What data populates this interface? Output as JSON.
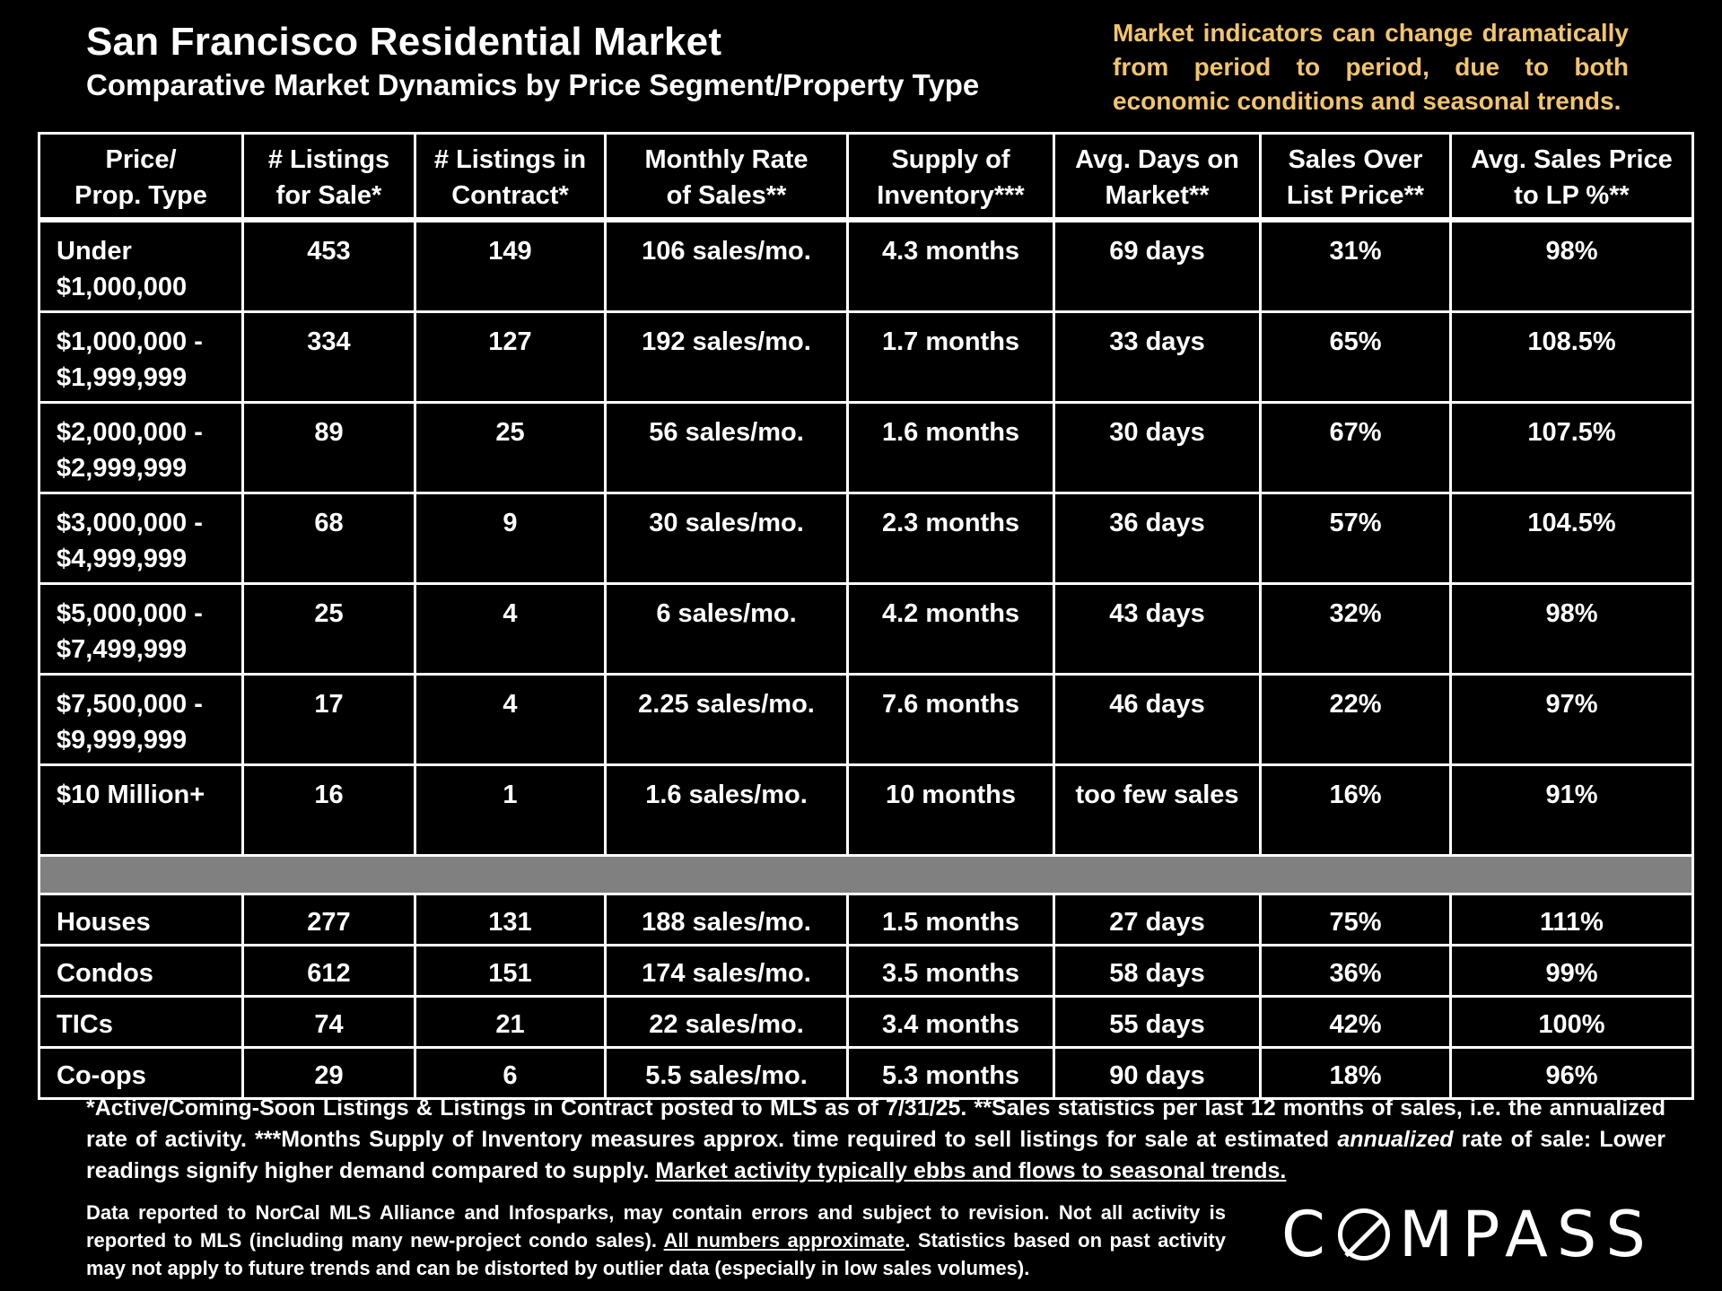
{
  "header": {
    "title": "San Francisco Residential Market",
    "subtitle": "Comparative Market Dynamics by Price Segment/Property Type",
    "note": "Market indicators can change dramatically from period to period, due to both economic conditions and seasonal trends."
  },
  "table": {
    "columns": [
      [
        "Price/",
        "Prop. Type"
      ],
      [
        "# Listings",
        "for Sale*"
      ],
      [
        "# Listings in",
        "Contract*"
      ],
      [
        "Monthly Rate",
        "of Sales**"
      ],
      [
        "Supply of",
        "Inventory***"
      ],
      [
        "Avg. Days on",
        "Market**"
      ],
      [
        "Sales Over",
        "List Price**"
      ],
      [
        "Avg. Sales Price",
        "to LP %**"
      ]
    ],
    "price_rows": [
      {
        "label": [
          "Under",
          "$1,000,000"
        ],
        "listings": "453",
        "contract": "149",
        "rate": "106 sales/mo.",
        "supply": "4.3 months",
        "dom": "69 days",
        "over": "31%",
        "lp": "98%"
      },
      {
        "label": [
          "$1,000,000 -",
          "$1,999,999"
        ],
        "listings": "334",
        "contract": "127",
        "rate": "192 sales/mo.",
        "supply": "1.7 months",
        "dom": "33 days",
        "over": "65%",
        "lp": "108.5%"
      },
      {
        "label": [
          "$2,000,000 -",
          "$2,999,999"
        ],
        "listings": "89",
        "contract": "25",
        "rate": "56 sales/mo.",
        "supply": "1.6 months",
        "dom": "30 days",
        "over": "67%",
        "lp": "107.5%"
      },
      {
        "label": [
          "$3,000,000 -",
          "$4,999,999"
        ],
        "listings": "68",
        "contract": "9",
        "rate": "30 sales/mo.",
        "supply": "2.3 months",
        "dom": "36 days",
        "over": "57%",
        "lp": "104.5%"
      },
      {
        "label": [
          "$5,000,000 -",
          "$7,499,999"
        ],
        "listings": "25",
        "contract": "4",
        "rate": "6 sales/mo.",
        "supply": "4.2 months",
        "dom": "43 days",
        "over": "32%",
        "lp": "98%"
      },
      {
        "label": [
          "$7,500,000 -",
          "$9,999,999"
        ],
        "listings": "17",
        "contract": "4",
        "rate": "2.25 sales/mo.",
        "supply": "7.6 months",
        "dom": "46 days",
        "over": "22%",
        "lp": "97%"
      },
      {
        "label": [
          "$10 Million+",
          ""
        ],
        "listings": "16",
        "contract": "1",
        "rate": "1.6 sales/mo.",
        "supply": "10 months",
        "dom": "too few sales",
        "over": "16%",
        "lp": "91%"
      }
    ],
    "type_rows": [
      {
        "label": "Houses",
        "listings": "277",
        "contract": "131",
        "rate": "188 sales/mo.",
        "supply": "1.5 months",
        "dom": "27 days",
        "over": "75%",
        "lp": "111%"
      },
      {
        "label": "Condos",
        "listings": "612",
        "contract": "151",
        "rate": "174 sales/mo.",
        "supply": "3.5 months",
        "dom": "58 days",
        "over": "36%",
        "lp": "99%"
      },
      {
        "label": "TICs",
        "listings": "74",
        "contract": "21",
        "rate": "22 sales/mo.",
        "supply": "3.4 months",
        "dom": "55 days",
        "over": "42%",
        "lp": "100%"
      },
      {
        "label": "Co-ops",
        "listings": "29",
        "contract": "6",
        "rate": "5.5 sales/mo.",
        "supply": "5.3 months",
        "dom": "90 days",
        "over": "18%",
        "lp": "96%"
      }
    ]
  },
  "footnote": {
    "part1": "*Active/Coming-Soon Listings & Listings in Contract posted to MLS as of 7/31/25. **Sales statistics per last 12 months of sales, i.e. the annualized rate of activity.  ***Months Supply of Inventory measures approx. time required to sell listings for sale at estimated ",
    "italic": "annualized",
    "part2": " rate of sale:  Lower readings signify higher demand compared to supply. ",
    "underlined": "Market activity typically ebbs and flows to seasonal trends."
  },
  "disclaimer": {
    "part1": "Data reported to NorCal MLS Alliance and Infosparks, may contain errors and subject to revision.  Not all activity is reported to MLS (including many new-project condo sales). ",
    "underlined": "All numbers approximate",
    "part2": ". Statistics based on past activity may not apply to future trends and can be distorted by outlier data (especially in low sales volumes)."
  },
  "brand": {
    "logo_pre": "C",
    "logo_post": "MPASS",
    "accent_color": "#f2c46d"
  }
}
